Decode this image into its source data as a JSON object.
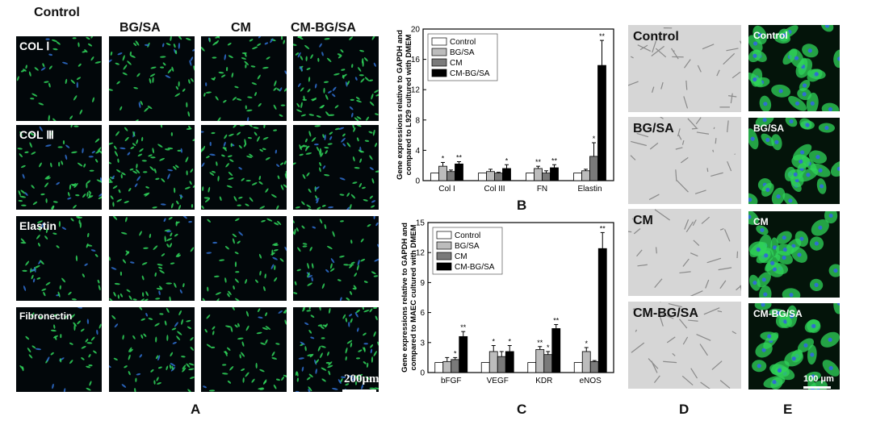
{
  "panel_a": {
    "col_headers": [
      "Control",
      "BG/SA",
      "CM",
      "CM-BG/SA"
    ],
    "row_labels": [
      "COL Ⅰ",
      "COL Ⅲ",
      "Elastin",
      "Fibronectin"
    ],
    "scale_bar": "200μm",
    "letter": "A"
  },
  "panel_d": {
    "labels": [
      "Control",
      "BG/SA",
      "CM",
      "CM-BG/SA"
    ],
    "letter": "D"
  },
  "panel_e": {
    "labels": [
      "Control",
      "BG/SA",
      "CM",
      "CM-BG/SA"
    ],
    "scale_bar": "100 μm",
    "letter": "E"
  },
  "colors": {
    "control": "#ffffff",
    "bgsa": "#bcbcbc",
    "cm": "#7a7a7a",
    "cmbgsa": "#000000",
    "cell_green": "#2fd35a",
    "nucleus_blue": "#2f6fd0"
  },
  "chart_data": [
    {
      "type": "bar",
      "panel": "B",
      "categories": [
        "Col I",
        "Col III",
        "FN",
        "Elastin"
      ],
      "ylabel": "Gene expressions relative to GAPDH and compared to L929 cultured with DMEM",
      "ylim": [
        0,
        20
      ],
      "yticks": [
        0,
        4,
        8,
        12,
        16,
        20
      ],
      "legend_position": "top-left",
      "series": [
        {
          "name": "Control",
          "values": [
            1.0,
            1.0,
            1.0,
            1.0
          ],
          "err": [
            0,
            0,
            0,
            0
          ],
          "sig": [
            "",
            "",
            "",
            ""
          ]
        },
        {
          "name": "BG/SA",
          "values": [
            1.9,
            1.2,
            1.6,
            1.3
          ],
          "err": [
            0.5,
            0.3,
            0.3,
            0.2
          ],
          "sig": [
            "*",
            "",
            "**",
            ""
          ]
        },
        {
          "name": "CM",
          "values": [
            1.2,
            1.0,
            1.0,
            3.2
          ],
          "err": [
            0.2,
            0.1,
            0.3,
            1.8
          ],
          "sig": [
            "",
            "",
            "",
            "*"
          ]
        },
        {
          "name": "CM-BG/SA",
          "values": [
            2.2,
            1.6,
            1.7,
            15.2
          ],
          "err": [
            0.3,
            0.5,
            0.4,
            3.3
          ],
          "sig": [
            "**",
            "*",
            "**",
            "**"
          ]
        }
      ],
      "letter": "B"
    },
    {
      "type": "bar",
      "panel": "C",
      "categories": [
        "bFGF",
        "VEGF",
        "KDR",
        "eNOS"
      ],
      "ylabel": "Gene expressions relative to GAPDH and compared to MAEC cultured with DMEM",
      "ylim": [
        0,
        15
      ],
      "yticks": [
        0,
        3,
        6,
        9,
        12,
        15
      ],
      "legend_position": "top-left",
      "series": [
        {
          "name": "Control",
          "values": [
            1.0,
            1.0,
            1.0,
            1.0
          ],
          "err": [
            0,
            0,
            0,
            0
          ],
          "sig": [
            "",
            "",
            "",
            ""
          ]
        },
        {
          "name": "BG/SA",
          "values": [
            1.1,
            2.1,
            2.3,
            2.1
          ],
          "err": [
            0.4,
            0.6,
            0.3,
            0.4
          ],
          "sig": [
            "",
            "*",
            "**",
            "*"
          ]
        },
        {
          "name": "CM",
          "values": [
            1.3,
            1.6,
            1.8,
            1.1
          ],
          "err": [
            0.2,
            0.5,
            0.3,
            0.1
          ],
          "sig": [
            "*",
            "",
            "*",
            ""
          ]
        },
        {
          "name": "CM-BG/SA",
          "values": [
            3.6,
            2.1,
            4.4,
            12.4
          ],
          "err": [
            0.5,
            0.6,
            0.4,
            1.6
          ],
          "sig": [
            "**",
            "*",
            "**",
            "**"
          ]
        }
      ],
      "letter": "C"
    }
  ]
}
